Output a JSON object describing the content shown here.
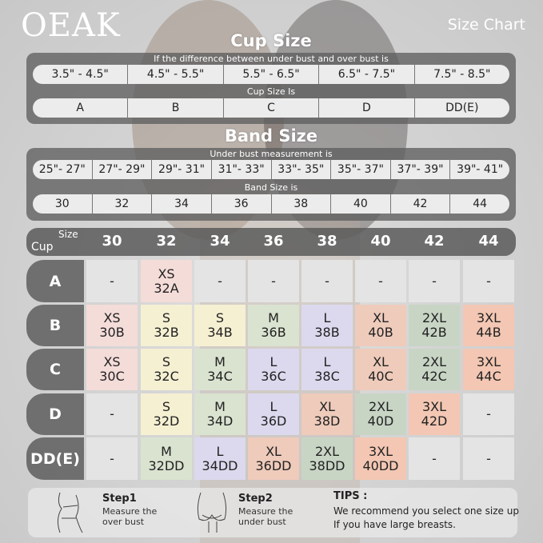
{
  "brand": "OEAK",
  "title": "Size Chart",
  "cup_section": {
    "title": "Cup Size",
    "caption_diff": "If the  difference between under bust and over bust is",
    "differences": [
      "3.5\" -  4.5\"",
      "4.5\" -  5.5\"",
      "5.5\" -  6.5\"",
      "6.5\" -  7.5\"",
      "7.5\" -  8.5\""
    ],
    "caption_cup": "Cup Size Is",
    "cups": [
      "A",
      "B",
      "C",
      "D",
      "DD(E)"
    ]
  },
  "band_section": {
    "title": "Band Size",
    "caption_under": "Under bust measurement is",
    "measurements": [
      "25\"- 27\"",
      "27\"- 29\"",
      "29\"- 31\"",
      "31\"- 33\"",
      "33\"- 35\"",
      "35\"- 37\"",
      "37\"- 39\"",
      "39\"- 41\""
    ],
    "caption_band": "Band Size is",
    "bands": [
      "30",
      "32",
      "34",
      "36",
      "38",
      "40",
      "42",
      "44"
    ]
  },
  "grid": {
    "corner_size": "Size",
    "corner_cup": "Cup",
    "columns": [
      "30",
      "32",
      "34",
      "36",
      "38",
      "40",
      "42",
      "44"
    ],
    "rows": [
      {
        "cup": "A",
        "cells": [
          [
            "-",
            ""
          ],
          [
            "XS",
            "32A"
          ],
          [
            "-",
            ""
          ],
          [
            "-",
            ""
          ],
          [
            "-",
            ""
          ],
          [
            "-",
            ""
          ],
          [
            "-",
            ""
          ],
          [
            "-",
            ""
          ]
        ]
      },
      {
        "cup": "B",
        "cells": [
          [
            "XS",
            "30B"
          ],
          [
            "S",
            "32B"
          ],
          [
            "S",
            "34B"
          ],
          [
            "M",
            "36B"
          ],
          [
            "L",
            "38B"
          ],
          [
            "XL",
            "40B"
          ],
          [
            "2XL",
            "42B"
          ],
          [
            "3XL",
            "44B"
          ]
        ]
      },
      {
        "cup": "C",
        "cells": [
          [
            "XS",
            "30C"
          ],
          [
            "S",
            "32C"
          ],
          [
            "M",
            "34C"
          ],
          [
            "L",
            "36C"
          ],
          [
            "L",
            "38C"
          ],
          [
            "XL",
            "40C"
          ],
          [
            "2XL",
            "42C"
          ],
          [
            "3XL",
            "44C"
          ]
        ]
      },
      {
        "cup": "D",
        "cells": [
          [
            "-",
            ""
          ],
          [
            "S",
            "32D"
          ],
          [
            "M",
            "34D"
          ],
          [
            "L",
            "36D"
          ],
          [
            "XL",
            "38D"
          ],
          [
            "2XL",
            "40D"
          ],
          [
            "3XL",
            "42D"
          ],
          [
            "-",
            ""
          ]
        ]
      },
      {
        "cup": "DD(E)",
        "cells": [
          [
            "-",
            ""
          ],
          [
            "M",
            "32DD"
          ],
          [
            "L",
            "34DD"
          ],
          [
            "XL",
            "36DD"
          ],
          [
            "2XL",
            "38DD"
          ],
          [
            "3XL",
            "40DD"
          ],
          [
            "-",
            ""
          ],
          [
            "-",
            ""
          ]
        ]
      }
    ],
    "size_colors": {
      "XS": "#f4dcd9",
      "S": "#f5f0d2",
      "M": "#dae3d0",
      "L": "#dcd9ee",
      "XL": "#efcbbb",
      "2XL": "#c8d5c5",
      "3XL": "#f3c7b3",
      "-": "#e4e4e4"
    }
  },
  "footer": {
    "step1_title": "Step1",
    "step1_text": [
      "Measure the",
      "over bust"
    ],
    "step2_title": "Step2",
    "step2_text": [
      "Measure the",
      "under bust"
    ],
    "tips_title": "TIPS :",
    "tips_text": [
      "We recommend you select one size up",
      "If you have large breasts."
    ]
  }
}
